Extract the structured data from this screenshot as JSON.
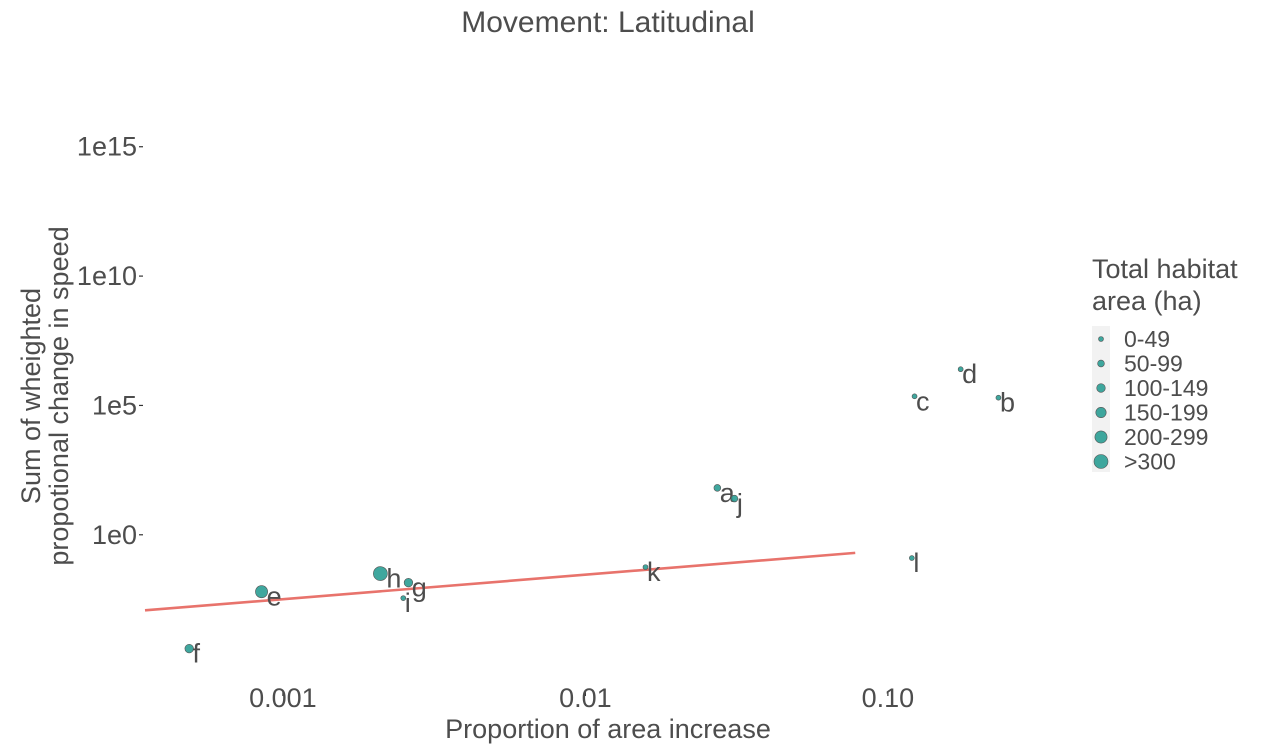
{
  "chart_data": {
    "type": "scatter",
    "title": "Movement: Latitudinal",
    "xlabel": "Proportion of area increase",
    "ylabel": [
      "Sum of wheighted",
      "propotional change in speed"
    ],
    "x_scale": "log10",
    "y_scale": "log10",
    "xlim": [
      0.00035,
      0.4
    ],
    "ylim": [
      1e-06,
      1e+17
    ],
    "x_ticks": [
      {
        "value": 0.001,
        "label": "0.001"
      },
      {
        "value": 0.01,
        "label": "0.01"
      },
      {
        "value": 0.1,
        "label": "0.10"
      }
    ],
    "y_ticks": [
      {
        "value": 1,
        "label": "1e0"
      },
      {
        "value": 100000,
        "label": "1e5"
      },
      {
        "value": 10000000000,
        "label": "1e10"
      },
      {
        "value": 1000000000000000.0,
        "label": "1e15"
      }
    ],
    "grid": false,
    "legend": {
      "title": [
        "Total habitat",
        "area (ha)"
      ],
      "position": "right",
      "entries": [
        {
          "label": "0-49",
          "size_class": 1
        },
        {
          "label": "50-99",
          "size_class": 2
        },
        {
          "label": "100-149",
          "size_class": 3
        },
        {
          "label": "150-199",
          "size_class": 4
        },
        {
          "label": "200-299",
          "size_class": 5
        },
        {
          "label": ">300",
          "size_class": 6
        }
      ]
    },
    "point_color": "#2a9d94",
    "fit_line_color": "#e8736c",
    "points": [
      {
        "label": "a",
        "x": 0.0273,
        "y": 65.0,
        "size_class": 2
      },
      {
        "label": "b",
        "x": 0.232,
        "y": 199000,
        "size_class": 1
      },
      {
        "label": "c",
        "x": 0.1225,
        "y": 225000,
        "size_class": 1
      },
      {
        "label": "d",
        "x": 0.174,
        "y": 2510000,
        "size_class": 1
      },
      {
        "label": "e",
        "x": 0.00085,
        "y": 0.00631,
        "size_class": 5
      },
      {
        "label": "f",
        "x": 0.00049,
        "y": 3.98e-05,
        "size_class": 3
      },
      {
        "label": "g",
        "x": 0.0026,
        "y": 0.0141,
        "size_class": 3
      },
      {
        "label": "h",
        "x": 0.0021,
        "y": 0.0316,
        "size_class": 6
      },
      {
        "label": "i",
        "x": 0.0025,
        "y": 0.00355,
        "size_class": 1
      },
      {
        "label": "j",
        "x": 0.0311,
        "y": 25.1,
        "size_class": 2
      },
      {
        "label": "k",
        "x": 0.0158,
        "y": 0.0562,
        "size_class": 1
      },
      {
        "label": "l",
        "x": 0.12,
        "y": 0.126,
        "size_class": 1
      }
    ],
    "fit_line": {
      "x": [
        0.00035,
        0.078
      ],
      "y": [
        0.0012,
        0.2
      ]
    }
  }
}
